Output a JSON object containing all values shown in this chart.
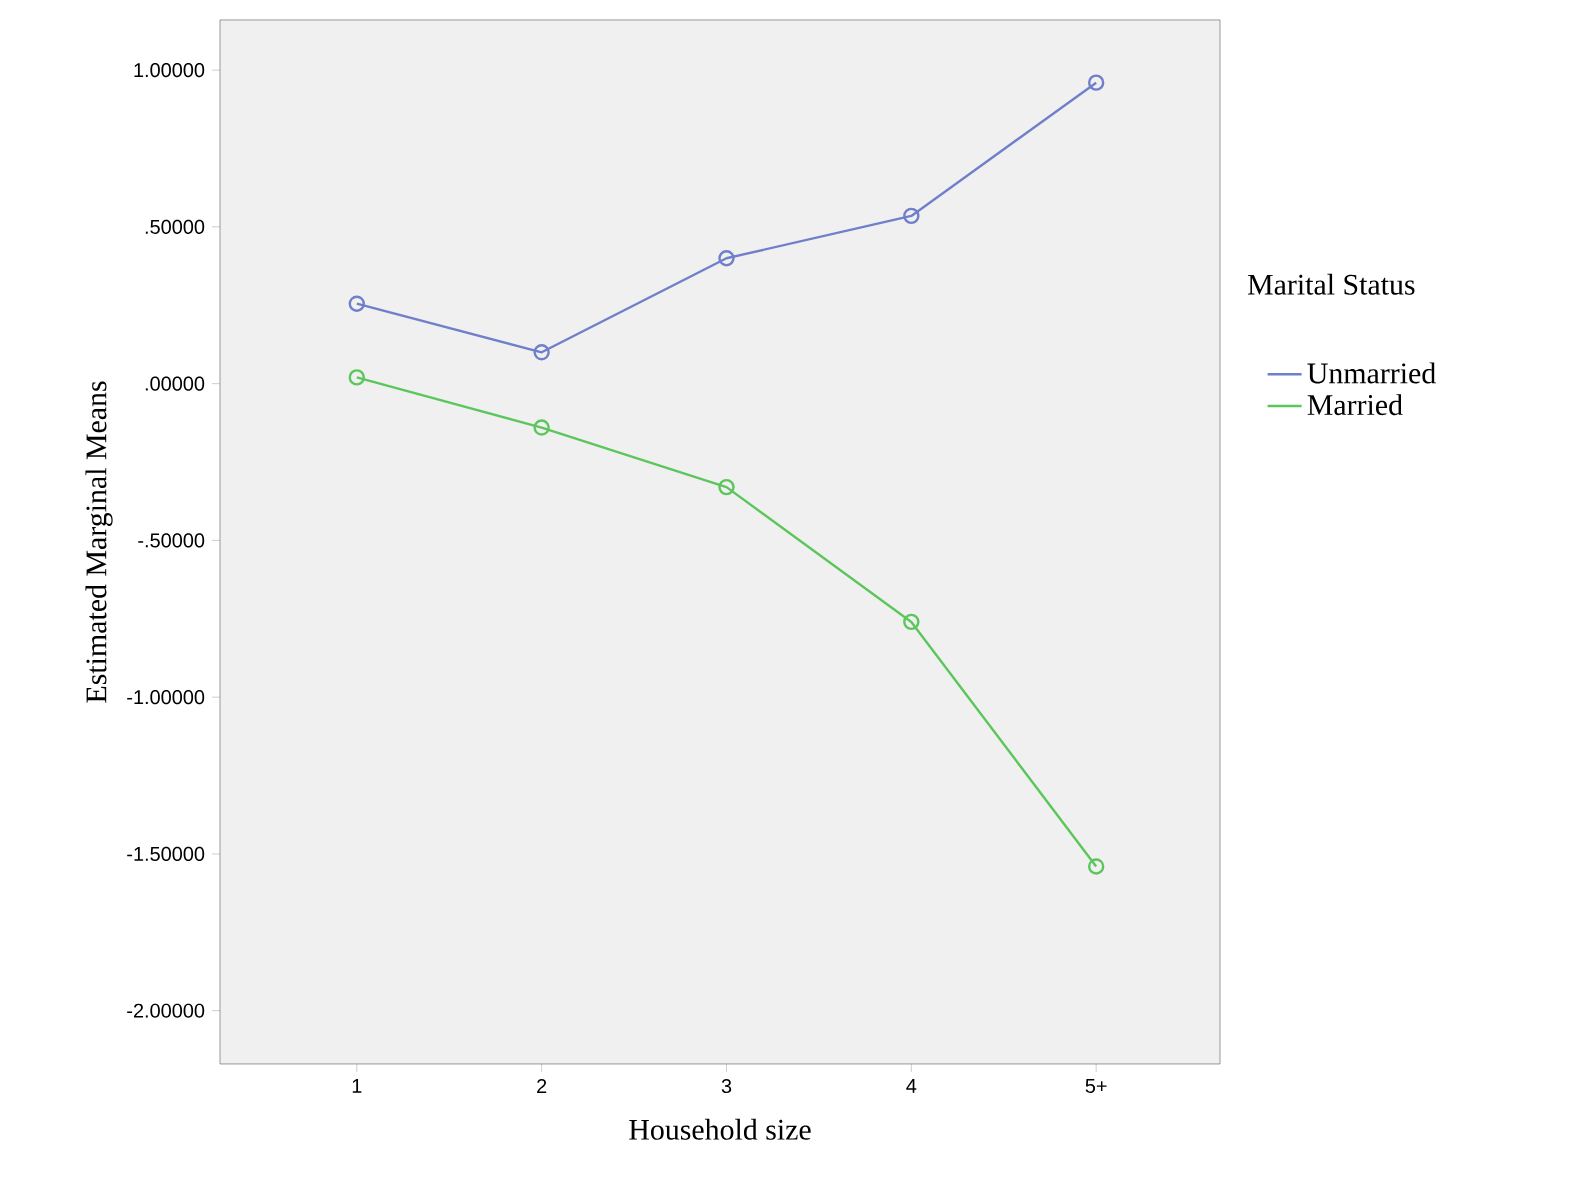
{
  "chart_data": {
    "type": "line",
    "xlabel": "Household size",
    "ylabel": "Estimated Marginal Means",
    "legend_title": "Marital Status",
    "categories": [
      "1",
      "2",
      "3",
      "4",
      "5+"
    ],
    "series": [
      {
        "name": "Unmarried",
        "color": "#6f7fca",
        "values": [
          0.255,
          0.1,
          0.4,
          0.535,
          0.96
        ]
      },
      {
        "name": "Married",
        "color": "#5cc65c",
        "values": [
          0.02,
          -0.14,
          -0.33,
          -0.76,
          -1.54
        ]
      }
    ],
    "ylim": [
      -2.17,
      1.16
    ],
    "yticks": [
      {
        "value": 1,
        "label": "1.00000"
      },
      {
        "value": 0.5,
        "label": ".50000"
      },
      {
        "value": 0,
        "label": ".00000"
      },
      {
        "value": -0.5,
        "label": "-.50000"
      },
      {
        "value": -1,
        "label": "-1.00000"
      },
      {
        "value": -1.5,
        "label": "-1.50000"
      },
      {
        "value": -2,
        "label": "-2.00000"
      }
    ],
    "grid": false,
    "legend": "right",
    "marker": "circle",
    "line_style": "solid"
  }
}
